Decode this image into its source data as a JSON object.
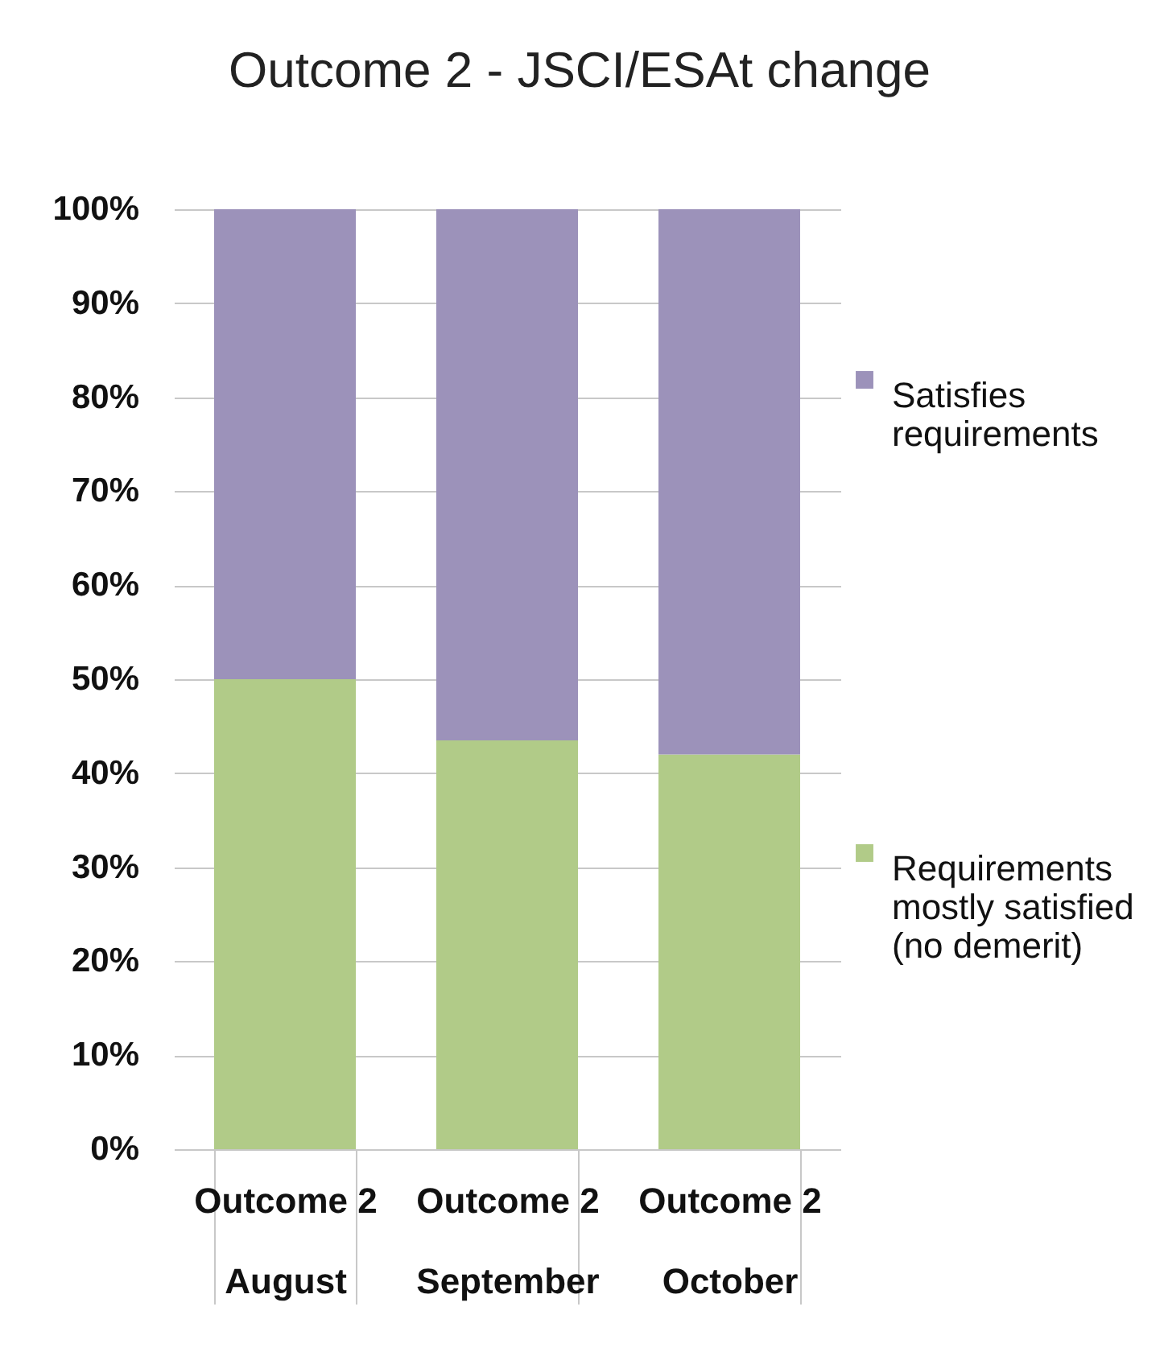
{
  "chart_data": {
    "type": "bar",
    "title": "Outcome 2 - JSCI/ESAt change",
    "categories": [
      "Outcome 2\nAugust",
      "Outcome 2\nSeptember",
      "Outcome 2\nOctober"
    ],
    "stacked": true,
    "series": [
      {
        "name": "Requirements mostly satisfied (no demerit)",
        "color": "#b1cb88",
        "values": [
          50,
          43.5,
          42
        ]
      },
      {
        "name": "Satisfies requirements",
        "color": "#9c92ba",
        "values": [
          50,
          56.5,
          58
        ]
      }
    ],
    "ylim": [
      0,
      100
    ],
    "yticks": [
      {
        "value": 0,
        "label": "0%"
      },
      {
        "value": 10,
        "label": "10%"
      },
      {
        "value": 20,
        "label": "20%"
      },
      {
        "value": 30,
        "label": "30%"
      },
      {
        "value": 40,
        "label": "40%"
      },
      {
        "value": 50,
        "label": "50%"
      },
      {
        "value": 60,
        "label": "60%"
      },
      {
        "value": 70,
        "label": "70%"
      },
      {
        "value": 80,
        "label": "80%"
      },
      {
        "value": 90,
        "label": "90%"
      },
      {
        "value": 100,
        "label": "100%"
      }
    ],
    "grid": "y",
    "legend": "right"
  }
}
